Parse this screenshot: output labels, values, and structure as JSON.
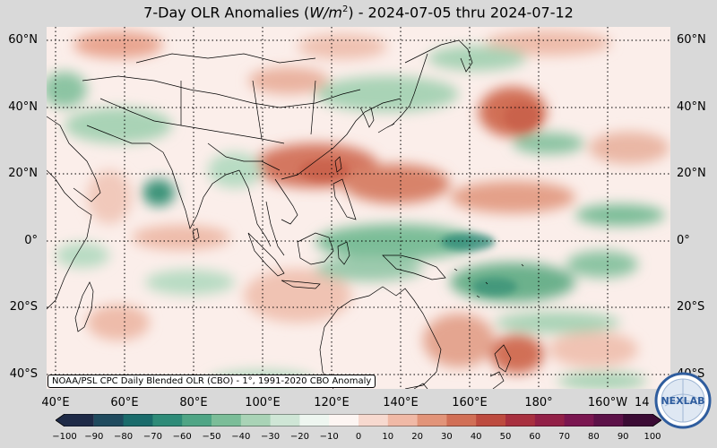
{
  "title": {
    "prefix": "7-Day OLR Anomalies (",
    "unit_base": "W/m",
    "unit_exp": "2",
    "suffix": ") - 2024-07-05 thru 2024-07-12"
  },
  "map": {
    "projection": "equirectangular",
    "lon_range": [
      "40°E",
      "140°W"
    ],
    "lat_range": [
      "45°S",
      "65°N"
    ],
    "gridlines": "dotted",
    "lat_labels": [
      "60°N",
      "40°N",
      "20°N",
      "0°",
      "20°S",
      "40°S"
    ],
    "lon_labels": [
      "40°E",
      "60°E",
      "80°E",
      "100°E",
      "120°E",
      "140°E",
      "160°E",
      "180°",
      "160°W",
      "14"
    ]
  },
  "source_note": "NOAA/PSL CPC Daily Blended OLR (CBO) - 1°, 1991-2020 CBO Anomaly",
  "colorbar": {
    "ticks": [
      "−100",
      "−90",
      "−80",
      "−70",
      "−60",
      "−50",
      "−40",
      "−30",
      "−20",
      "−10",
      "0",
      "10",
      "20",
      "30",
      "40",
      "50",
      "60",
      "70",
      "80",
      "90",
      "100"
    ],
    "min": -100,
    "max": 100,
    "colors": [
      "#1e2a47",
      "#1f4a5e",
      "#1a6b6b",
      "#2e8b78",
      "#4fa585",
      "#7bbd98",
      "#a9d3b6",
      "#cfe6d6",
      "#eef6f0",
      "#fdf5f2",
      "#f7d9cf",
      "#f0b9a6",
      "#e29479",
      "#d16f56",
      "#bd4b3f",
      "#a8303f",
      "#922047",
      "#7a1650",
      "#5c1148",
      "#3b0b34"
    ]
  },
  "logo": {
    "text": "NEXLAB"
  },
  "colors": {
    "background": "#d9d9d9",
    "coast": "#000000",
    "grid": "#000000"
  }
}
